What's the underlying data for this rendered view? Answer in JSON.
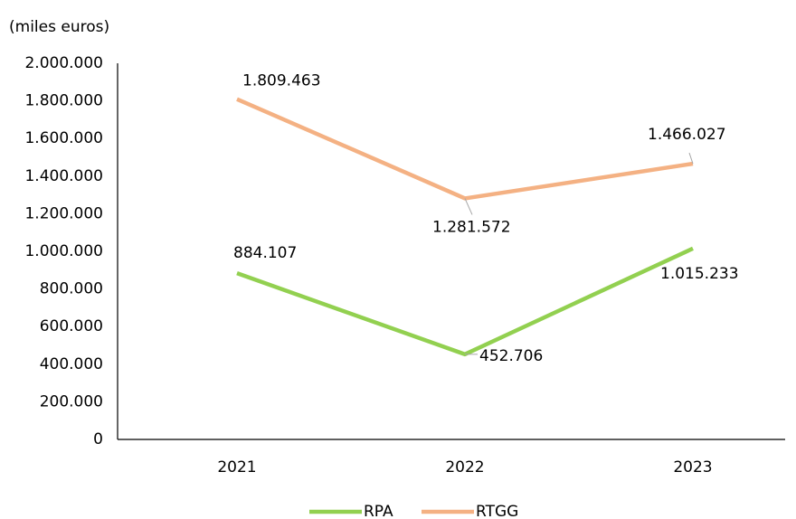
{
  "chart_data": {
    "type": "line",
    "y_axis_label": "(miles euros)",
    "categories": [
      "2021",
      "2022",
      "2023"
    ],
    "series": [
      {
        "name": "RPA",
        "color": "#92d050",
        "values": [
          884107,
          452706,
          1015233
        ],
        "value_labels": [
          "884.107",
          "452.706",
          "1.015.233"
        ]
      },
      {
        "name": "RTGG",
        "color": "#f4b183",
        "values": [
          1809463,
          1281572,
          1466027
        ],
        "value_labels": [
          "1.809.463",
          "1.281.572",
          "1.466.027"
        ]
      }
    ],
    "ylim": [
      0,
      2000000
    ],
    "yticks": [
      0,
      {
        "value": 200000,
        "label": "200.000"
      },
      {
        "value": 400000,
        "label": "400.000"
      },
      {
        "value": 600000,
        "label": "600.000"
      },
      {
        "value": 800000,
        "label": "800.000"
      },
      {
        "value": 1000000,
        "label": "1.000.000"
      },
      {
        "value": 1200000,
        "label": "1.200.000"
      },
      {
        "value": 1400000,
        "label": "1.400.000"
      },
      {
        "value": 1600000,
        "label": "1.600.000"
      },
      {
        "value": 1800000,
        "label": "1.800.000"
      },
      {
        "value": 2000000,
        "label": "2.000.000"
      }
    ],
    "grid": false,
    "legend": "bottom"
  }
}
